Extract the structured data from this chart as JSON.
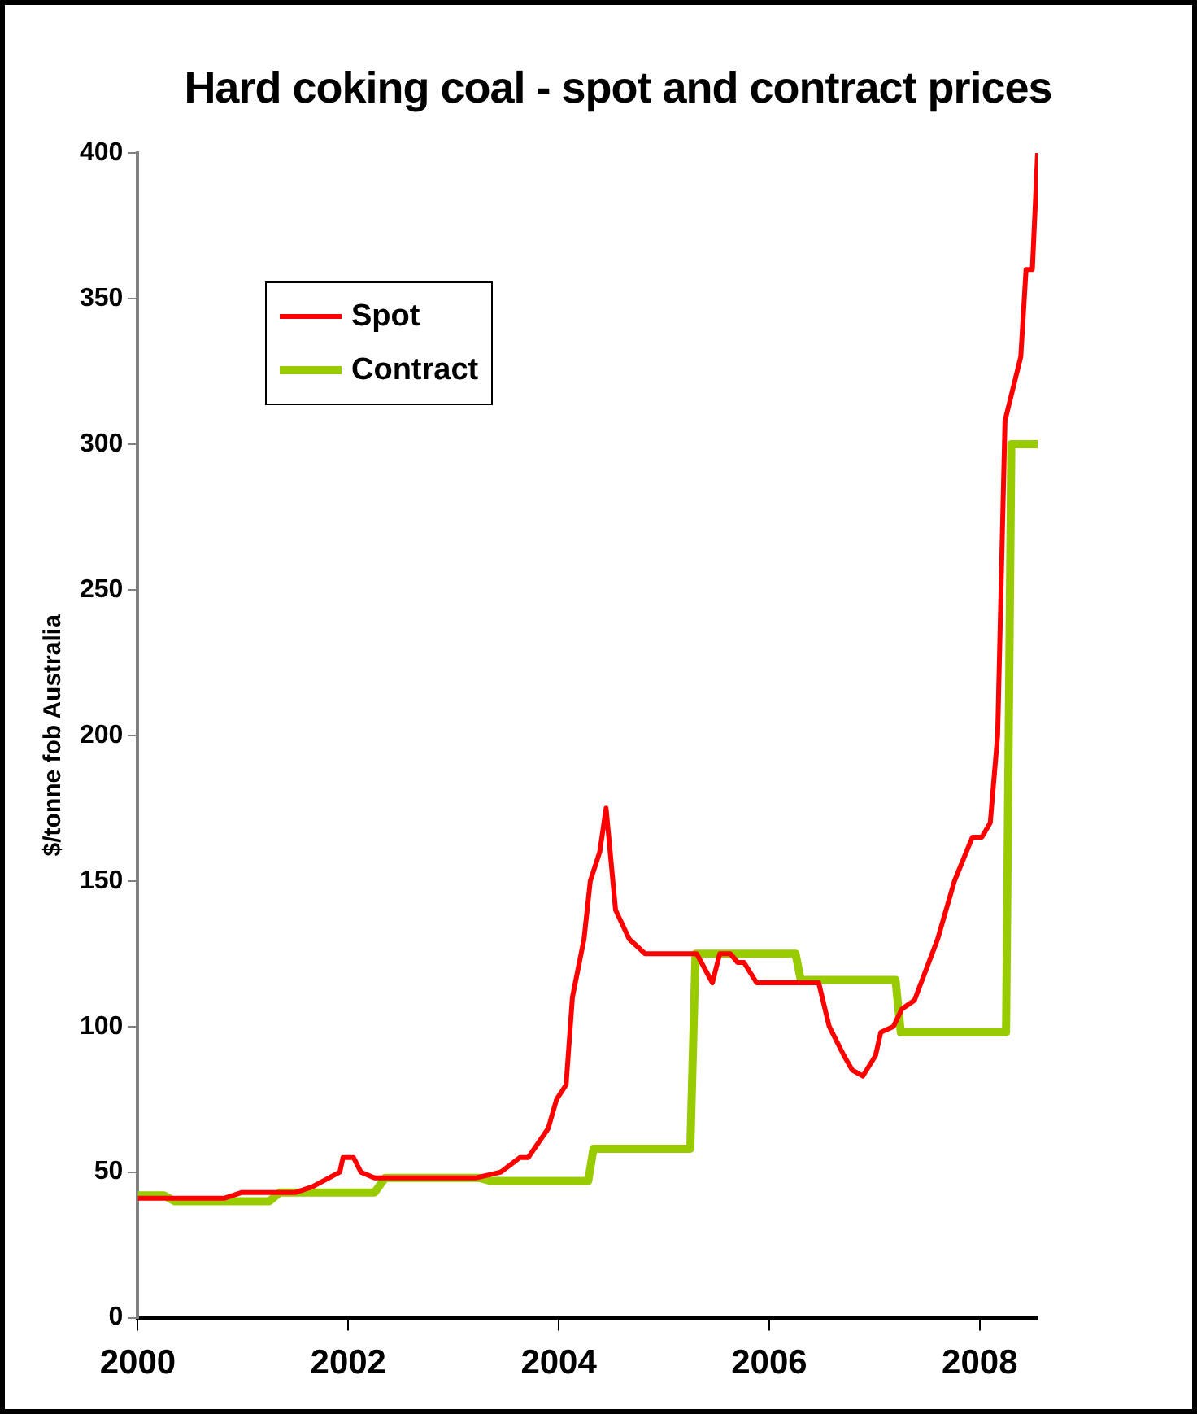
{
  "chart_data": {
    "type": "line",
    "title": "Hard coking coal - spot and contract prices",
    "ylabel": "$/tonne fob Australia",
    "xlim": [
      2000,
      2008.55
    ],
    "xticks": [
      2000,
      2002,
      2004,
      2006,
      2008
    ],
    "ylim": [
      0,
      400
    ],
    "yticks": [
      0,
      50,
      100,
      150,
      200,
      250,
      300,
      350,
      400
    ],
    "grid": false,
    "legend": "top left",
    "marker": "none",
    "line_style": "solid",
    "series": [
      {
        "name": "Spot",
        "color": "#ff0000",
        "x": [
          2000,
          2000.82,
          2000.99,
          2001.5,
          2001.66,
          2001.92,
          2001.95,
          2002.05,
          2002.12,
          2002.25,
          2003.21,
          2003.45,
          2003.63,
          2003.71,
          2003.9,
          2003.98,
          2004.07,
          2004.13,
          2004.24,
          2004.3,
          2004.39,
          2004.45,
          2004.54,
          2004.67,
          2004.82,
          2005.31,
          2005.46,
          2005.53,
          2005.63,
          2005.7,
          2005.76,
          2005.88,
          2006.47,
          2006.57,
          2006.71,
          2006.79,
          2006.89,
          2007.01,
          2007.06,
          2007.18,
          2007.26,
          2007.38,
          2007.6,
          2007.76,
          2007.93,
          2008.02,
          2008.1,
          2008.17,
          2008.24,
          2008.39,
          2008.44,
          2008.5,
          2008.55
        ],
        "values": [
          41,
          41,
          43,
          43,
          45,
          50,
          55,
          55,
          50,
          48,
          48,
          50,
          55,
          55,
          65,
          75,
          80,
          110,
          130,
          150,
          160,
          175,
          140,
          130,
          125,
          125,
          115,
          125,
          125,
          122,
          122,
          115,
          115,
          100,
          90,
          85,
          83,
          90,
          98,
          100,
          106,
          109,
          130,
          150,
          165,
          165,
          170,
          200,
          308,
          330,
          360,
          360,
          400
        ]
      },
      {
        "name": "Contract",
        "color": "#99cc00",
        "x": [
          2000,
          2000.25,
          2000.35,
          2001.25,
          2001.35,
          2002.25,
          2002.35,
          2003.25,
          2003.35,
          2004.28,
          2004.33,
          2005.25,
          2005.3,
          2006.25,
          2006.3,
          2007.2,
          2007.25,
          2008.25,
          2008.3,
          2008.55
        ],
        "values": [
          42,
          42,
          40,
          40,
          43,
          43,
          48,
          48,
          47,
          47,
          58,
          58,
          125,
          125,
          116,
          116,
          98,
          98,
          300,
          300
        ]
      }
    ]
  }
}
